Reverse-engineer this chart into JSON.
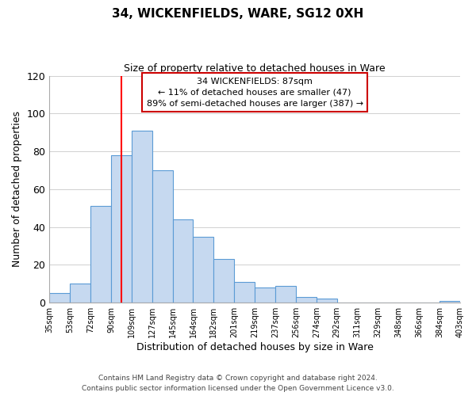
{
  "title": "34, WICKENFIELDS, WARE, SG12 0XH",
  "subtitle": "Size of property relative to detached houses in Ware",
  "xlabel": "Distribution of detached houses by size in Ware",
  "ylabel": "Number of detached properties",
  "bar_heights": [
    5,
    10,
    51,
    78,
    91,
    70,
    44,
    35,
    23,
    11,
    8,
    9,
    3,
    2,
    0,
    0,
    0,
    0,
    0,
    1
  ],
  "bar_color": "#c6d9f0",
  "bar_edgecolor": "#5b9bd5",
  "property_line_x": 3.5,
  "property_line_color": "#ff0000",
  "ylim": [
    0,
    120
  ],
  "annotation_title": "34 WICKENFIELDS: 87sqm",
  "annotation_line1": "← 11% of detached houses are smaller (47)",
  "annotation_line2": "89% of semi-detached houses are larger (387) →",
  "annotation_box_edgecolor": "#cc0000",
  "tick_labels": [
    "35sqm",
    "53sqm",
    "72sqm",
    "90sqm",
    "109sqm",
    "127sqm",
    "145sqm",
    "164sqm",
    "182sqm",
    "201sqm",
    "219sqm",
    "237sqm",
    "256sqm",
    "274sqm",
    "292sqm",
    "311sqm",
    "329sqm",
    "348sqm",
    "366sqm",
    "384sqm",
    "403sqm"
  ],
  "footer_line1": "Contains HM Land Registry data © Crown copyright and database right 2024.",
  "footer_line2": "Contains public sector information licensed under the Open Government Licence v3.0.",
  "background_color": "#ffffff",
  "grid_color": "#d0d0d0"
}
